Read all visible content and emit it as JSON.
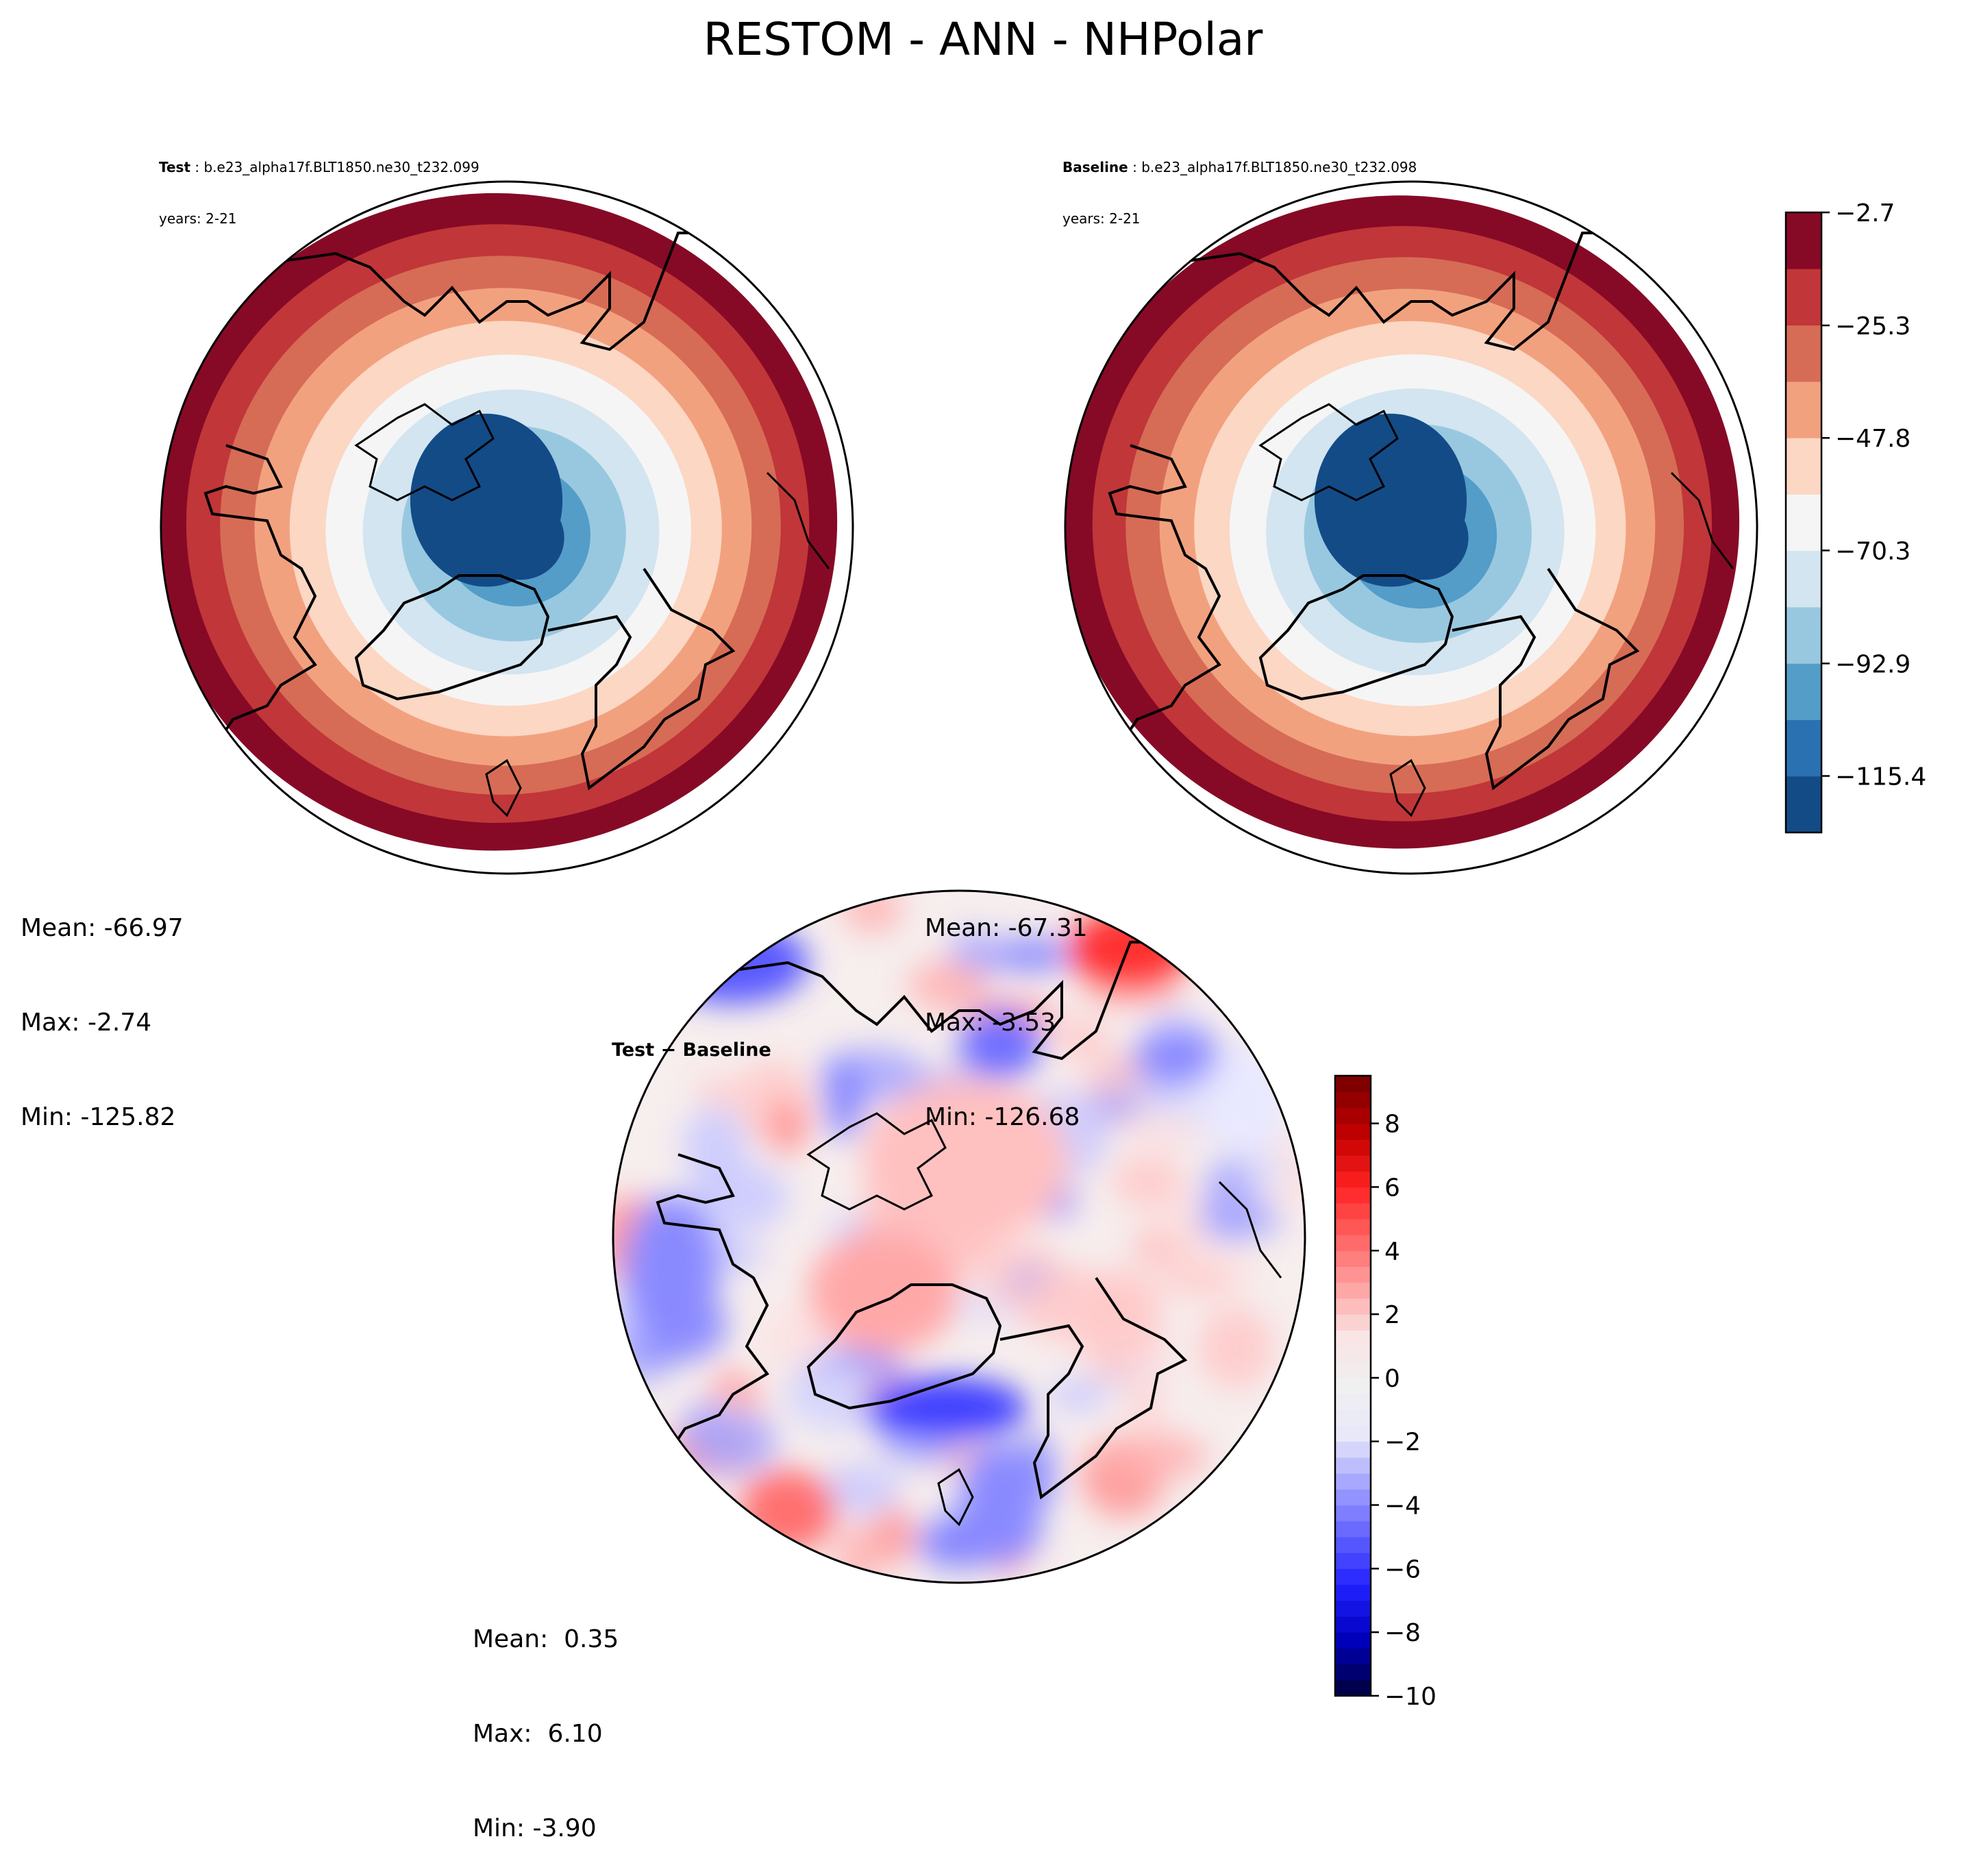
{
  "figure": {
    "title": "RESTOM - ANN - NHPolar"
  },
  "panels": {
    "test": {
      "label": "Test",
      "case": "b.e23_alpha17f.BLT1850.ne30_t232.099",
      "years": "years: 2-21",
      "stats": {
        "mean": "Mean: -66.97",
        "max": "Max: -2.74",
        "min": "Min: -125.82"
      }
    },
    "baseline": {
      "label": "Baseline",
      "case": "b.e23_alpha17f.BLT1850.ne30_t232.098",
      "years": "years: 2-21",
      "stats": {
        "mean": "Mean: -67.31",
        "max": "Max: -3.53",
        "min": "Min: -126.68"
      }
    },
    "diff": {
      "title": "Test − Baseline",
      "stats": {
        "mean": "Mean:  0.35",
        "max": "Max:  6.10",
        "min": "Min: -3.90"
      }
    }
  },
  "chart_data": [
    {
      "type": "heatmap",
      "name": "Test",
      "projection": "north polar stereographic",
      "variable": "RESTOM",
      "colorbar": {
        "min": -126.7,
        "max": -2.7,
        "levels": 11,
        "tick_values": [
          -2.7,
          -25.3,
          -47.8,
          -70.3,
          -92.9,
          -115.4
        ],
        "tick_labels": [
          "−2.7",
          "−25.3",
          "−47.8",
          "−70.3",
          "−92.9",
          "−115.4"
        ],
        "colors": [
          "#134b87",
          "#2a71b2",
          "#539dc8",
          "#98c8e0",
          "#d2e5f0",
          "#f5f5f5",
          "#fbd7c4",
          "#f2a17f",
          "#d66c55",
          "#c13639",
          "#860a26"
        ]
      },
      "field": {
        "pole_value": -122,
        "equatorward_value": -6
      },
      "stats": {
        "mean": -66.97,
        "max": -2.74,
        "min": -125.82
      }
    },
    {
      "type": "heatmap",
      "name": "Baseline",
      "projection": "north polar stereographic",
      "variable": "RESTOM",
      "colorbar_shared_with": "Test",
      "field": {
        "pole_value": -123,
        "equatorward_value": -5
      },
      "stats": {
        "mean": -67.31,
        "max": -3.53,
        "min": -126.68
      }
    },
    {
      "type": "heatmap",
      "name": "Test − Baseline",
      "projection": "north polar stereographic",
      "colorbar": {
        "min": -10,
        "max": 9.5,
        "tick_values": [
          -10,
          -8,
          -6,
          -4,
          -2,
          0,
          2,
          4,
          6,
          8
        ],
        "tick_labels": [
          "−10",
          "−8",
          "−6",
          "−4",
          "−2",
          "0",
          "2",
          "4",
          "6",
          "8"
        ],
        "colors": [
          "#00004c",
          "#0000c0",
          "#2020ff",
          "#6060ff",
          "#a0a0ff",
          "#e8e8fa",
          "#f0f0f0",
          "#fae4e4",
          "#ffa0a0",
          "#ff6060",
          "#ff2020",
          "#c00000",
          "#800000"
        ]
      },
      "stats": {
        "mean": 0.35,
        "max": 6.1,
        "min": -3.9
      }
    }
  ]
}
